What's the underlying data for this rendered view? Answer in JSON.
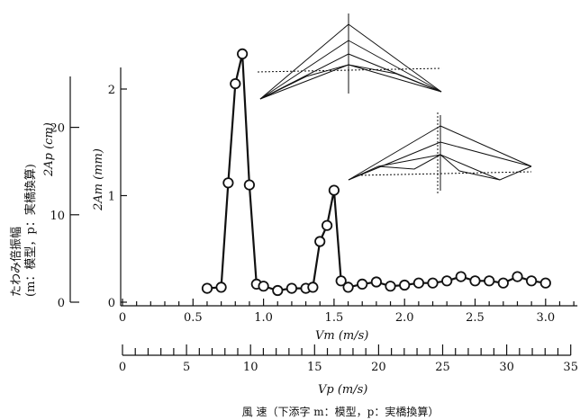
{
  "chart_data": {
    "type": "line",
    "x_axis_top": {
      "label": "Vm (m/s)",
      "range": [
        0,
        3.2
      ],
      "ticks": [
        "0",
        "0.5",
        "1.0",
        "1.5",
        "2.0",
        "2.5",
        "3.0"
      ],
      "minor_step": 0.1
    },
    "x_axis_bottom": {
      "label": "Vp (m/s)",
      "range": [
        0,
        35
      ],
      "ticks": [
        "0",
        "5",
        "10",
        "15",
        "20",
        "25",
        "30",
        "35"
      ],
      "minor_step": 1
    },
    "caption": "風 速（下添字 m：模型，p：実橋換算）",
    "y_axis_right": {
      "label": "2Am (mm)",
      "range": [
        0,
        2.4
      ],
      "ticks": [
        "0",
        "1",
        "2"
      ]
    },
    "y_axis_left": {
      "label": "たわみ倍振幅 (m：模型，p：実橋換算) 2Ap (cm)",
      "line1": "たわみ倍振幅",
      "line2": "(m：模型，p：実橋換算)",
      "line3": "2Ap (cm)",
      "range": [
        0,
        26
      ],
      "ticks": [
        "0",
        "10",
        "20"
      ]
    },
    "grid": false,
    "series": [
      {
        "x": [
          0.6,
          0.7,
          0.75,
          0.8,
          0.85,
          0.9,
          0.95,
          1.0,
          1.1,
          1.2,
          1.3,
          1.35,
          1.4,
          1.45,
          1.5,
          1.55,
          1.6,
          1.7,
          1.8,
          1.9,
          2.0,
          2.1,
          2.2,
          2.3,
          2.4,
          2.5,
          2.6,
          2.7,
          2.8,
          2.9,
          3.0
        ],
        "y": [
          0.13,
          0.14,
          1.12,
          2.05,
          2.33,
          1.1,
          0.17,
          0.15,
          0.11,
          0.13,
          0.13,
          0.14,
          0.57,
          0.72,
          1.05,
          0.2,
          0.14,
          0.17,
          0.19,
          0.15,
          0.16,
          0.18,
          0.18,
          0.2,
          0.24,
          0.2,
          0.2,
          0.18,
          0.24,
          0.2,
          0.18
        ],
        "marker": "open-circle",
        "color": "#111111"
      }
    ]
  }
}
